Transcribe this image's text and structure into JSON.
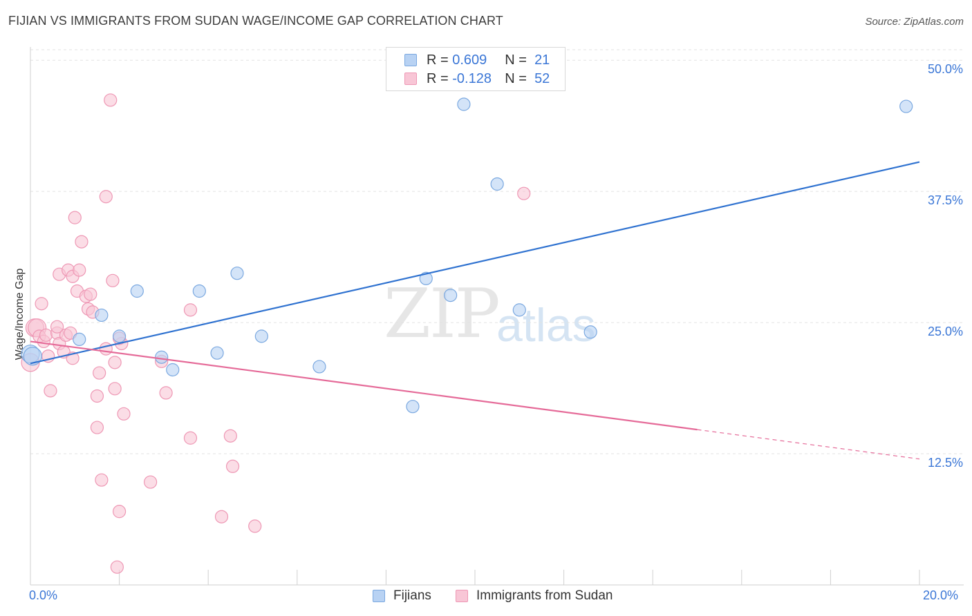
{
  "title": "FIJIAN VS IMMIGRANTS FROM SUDAN WAGE/INCOME GAP CORRELATION CHART",
  "source": "Source: ZipAtlas.com",
  "watermark": {
    "zip": "ZIP",
    "atlas": "atlas"
  },
  "legend_top": {
    "r_label": "R =",
    "n_label": "N =",
    "fijians": {
      "r": "0.609",
      "n": "21"
    },
    "sudan": {
      "r": "-0.128",
      "n": "52"
    }
  },
  "legend_bottom": {
    "fijians": "Fijians",
    "sudan": "Immigrants from Sudan"
  },
  "colors": {
    "fijian_fill": "#b8d2f3",
    "fijian_stroke": "#7aa8e0",
    "fijian_line": "#2f72d0",
    "sudan_fill": "#f8c6d6",
    "sudan_stroke": "#ee97b4",
    "sudan_line": "#e56a98",
    "axis_text": "#3a76d6",
    "grid": "#e2e2e2"
  },
  "chart_data": {
    "type": "scatter",
    "title": "FIJIAN VS IMMIGRANTS FROM SUDAN WAGE/INCOME GAP CORRELATION CHART",
    "xlabel": "",
    "ylabel": "Wage/Income Gap",
    "xlim": [
      0,
      20
    ],
    "ylim": [
      0,
      51
    ],
    "x_tick_labels": [
      "0.0%",
      "20.0%"
    ],
    "y_ticks": [
      12.5,
      25.0,
      37.5,
      50.0
    ],
    "y_tick_labels": [
      "12.5%",
      "25.0%",
      "37.5%",
      "50.0%"
    ],
    "series": [
      {
        "name": "Fijians",
        "r": 0.609,
        "n": 21,
        "points": [
          [
            0.0,
            22.0
          ],
          [
            0.05,
            21.8
          ],
          [
            1.1,
            23.4
          ],
          [
            1.6,
            25.7
          ],
          [
            2.0,
            23.7
          ],
          [
            2.4,
            28.0
          ],
          [
            2.95,
            21.7
          ],
          [
            3.2,
            20.5
          ],
          [
            3.8,
            28.0
          ],
          [
            4.2,
            22.1
          ],
          [
            4.65,
            29.7
          ],
          [
            5.2,
            23.7
          ],
          [
            6.5,
            20.8
          ],
          [
            8.6,
            17.0
          ],
          [
            8.9,
            29.2
          ],
          [
            9.45,
            27.6
          ],
          [
            9.75,
            45.8
          ],
          [
            10.5,
            38.2
          ],
          [
            11.0,
            26.2
          ],
          [
            12.6,
            24.1
          ],
          [
            19.7,
            45.6
          ]
        ],
        "trend": {
          "x0": 0.0,
          "y0": 21.1,
          "x1": 20.0,
          "y1": 40.3
        }
      },
      {
        "name": "Immigrants from Sudan",
        "r": -0.128,
        "n": 52,
        "points": [
          [
            0.0,
            21.2
          ],
          [
            0.1,
            24.5
          ],
          [
            0.15,
            24.5
          ],
          [
            0.2,
            23.7
          ],
          [
            0.25,
            26.8
          ],
          [
            0.3,
            23.2
          ],
          [
            0.35,
            23.8
          ],
          [
            0.4,
            21.8
          ],
          [
            0.45,
            18.5
          ],
          [
            0.6,
            24.0
          ],
          [
            0.65,
            23.0
          ],
          [
            0.6,
            24.6
          ],
          [
            0.65,
            29.6
          ],
          [
            0.75,
            22.2
          ],
          [
            0.8,
            23.8
          ],
          [
            0.85,
            30.0
          ],
          [
            0.9,
            24.0
          ],
          [
            0.95,
            21.6
          ],
          [
            0.95,
            29.4
          ],
          [
            1.0,
            35.0
          ],
          [
            1.05,
            28.0
          ],
          [
            1.1,
            30.0
          ],
          [
            1.15,
            32.7
          ],
          [
            1.25,
            27.5
          ],
          [
            1.3,
            26.3
          ],
          [
            1.35,
            27.7
          ],
          [
            1.4,
            26.0
          ],
          [
            1.5,
            15.0
          ],
          [
            1.5,
            18.0
          ],
          [
            1.55,
            20.2
          ],
          [
            1.6,
            10.0
          ],
          [
            1.7,
            22.5
          ],
          [
            1.7,
            37.0
          ],
          [
            1.8,
            46.2
          ],
          [
            1.85,
            29.0
          ],
          [
            1.9,
            21.2
          ],
          [
            1.9,
            18.7
          ],
          [
            1.95,
            1.7
          ],
          [
            2.0,
            7.0
          ],
          [
            2.05,
            23.0
          ],
          [
            2.1,
            16.3
          ],
          [
            2.7,
            9.8
          ],
          [
            2.95,
            21.3
          ],
          [
            3.05,
            18.3
          ],
          [
            3.6,
            14.0
          ],
          [
            3.6,
            26.2
          ],
          [
            4.3,
            6.5
          ],
          [
            4.5,
            14.2
          ],
          [
            4.55,
            11.3
          ],
          [
            5.05,
            5.6
          ],
          [
            11.1,
            37.3
          ],
          [
            2.0,
            23.5
          ]
        ],
        "trend": {
          "x0": 0.0,
          "y0": 23.2,
          "x1": 15.0,
          "y1": 14.8
        },
        "trend_dashed": {
          "x0": 15.0,
          "y0": 14.8,
          "x1": 20.0,
          "y1": 12.0
        }
      }
    ]
  }
}
